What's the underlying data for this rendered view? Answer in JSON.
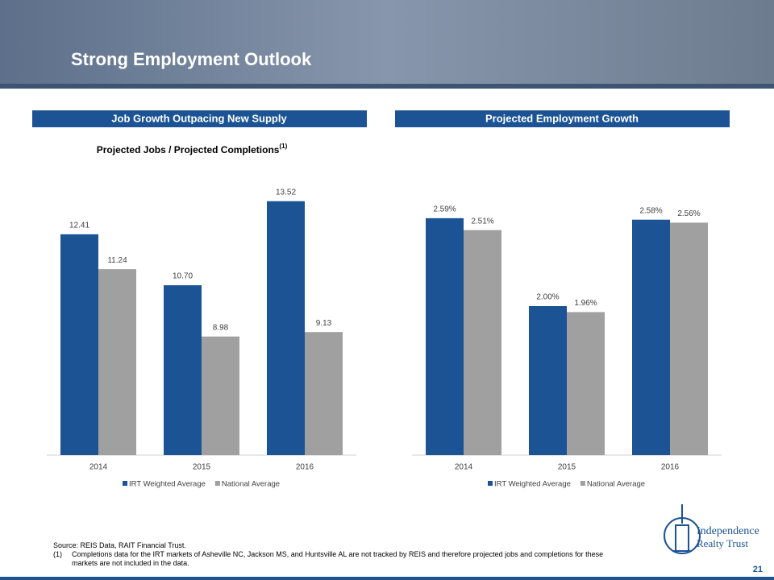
{
  "title": "Strong Employment Outlook",
  "chart_data": [
    {
      "type": "bar",
      "title": "Job Growth Outpacing New Supply",
      "subtitle": "Projected Jobs / Projected Completions",
      "subtitle_note": "(1)",
      "categories": [
        "2014",
        "2015",
        "2016"
      ],
      "series": [
        {
          "name": "IRT Weighted Average",
          "color": "#1b5394",
          "values": [
            12.41,
            10.7,
            13.52
          ],
          "value_labels": [
            "12.41",
            "10.70",
            "13.52"
          ]
        },
        {
          "name": "National Average",
          "color": "#a0a0a0",
          "values": [
            11.24,
            8.98,
            9.13
          ],
          "value_labels": [
            "11.24",
            "8.98",
            "9.13"
          ]
        }
      ],
      "ylim": [
        5,
        14
      ],
      "legend": "bottom"
    },
    {
      "type": "bar",
      "title": "Projected Employment Growth",
      "categories": [
        "2014",
        "2015",
        "2016"
      ],
      "series": [
        {
          "name": "IRT Weighted Average",
          "color": "#1b5394",
          "values": [
            2.59,
            2.0,
            2.58
          ],
          "value_labels": [
            "2.59%",
            "2.00%",
            "2.58%"
          ]
        },
        {
          "name": "National Average",
          "color": "#a0a0a0",
          "values": [
            2.51,
            1.96,
            2.56
          ],
          "value_labels": [
            "2.51%",
            "1.96%",
            "2.56%"
          ]
        }
      ],
      "ylim": [
        1,
        2.8
      ],
      "legend": "bottom"
    }
  ],
  "source": "Source: REIS Data, RAIT Financial Trust.",
  "footnotes": [
    {
      "marker": "(1)",
      "text": "Completions data for the IRT markets of Asheville NC, Jackson MS, and Huntsville AL are not tracked by REIS and therefore projected jobs and completions for these markets are not included in the data."
    }
  ],
  "logo": {
    "line1": "Independence",
    "line2": "Realty Trust"
  },
  "page_number": "21"
}
